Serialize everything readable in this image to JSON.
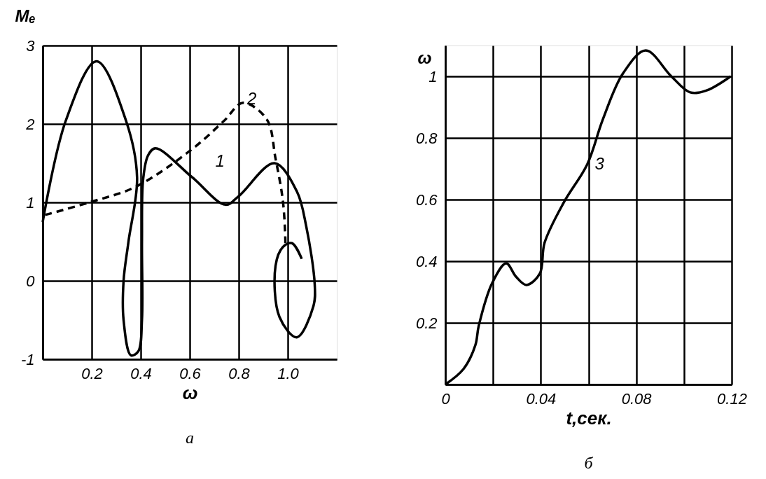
{
  "chart_data": [
    {
      "type": "line",
      "xlabel": "ω",
      "ylabel": "Mₑ",
      "xlim": [
        0,
        1.2
      ],
      "ylim": [
        -1,
        3
      ],
      "xticks": [
        {
          "value": 0,
          "label": null
        },
        0.2,
        0.4,
        0.6,
        0.8,
        {
          "value": 1.0,
          "label": "1.0"
        }
      ],
      "yticks": [
        -1,
        0,
        1,
        2,
        3
      ],
      "grid": true,
      "legend": false,
      "marker": "none",
      "series": [
        {
          "color": "#000000",
          "line_style": "solid",
          "x": [
            0,
            0.094,
            0.22,
            0.34,
            0.385,
            0.35,
            0.33,
            0.33,
            0.36,
            0.39,
            0.405,
            0.405,
            0.41,
            0.43,
            0.46,
            0.61,
            0.746,
            0.8,
            0.946,
            1.037,
            1.075,
            1.11,
            1.105,
            1.037,
            0.966,
            0.95,
            0.98,
            1.017,
            1.057
          ],
          "values": [
            0.75,
            2.04,
            2.8,
            2.04,
            1.32,
            0.5,
            0,
            -0.5,
            -0.95,
            -0.9,
            -0.5,
            0.5,
            1.3,
            1.6,
            1.69,
            1.32,
            0.97,
            1.08,
            1.5,
            1.14,
            0.7,
            -0.05,
            -0.32,
            -0.72,
            -0.46,
            0.19,
            0.43,
            0.48,
            0.28
          ]
        },
        {
          "color": "#000000",
          "line_style": "dashed",
          "x": [
            0.01,
            0.19,
            0.38,
            0.61,
            0.74,
            0.817,
            0.914,
            0.95,
            0.98,
            0.99,
            0.99
          ],
          "values": [
            0.84,
            1.0,
            1.2,
            1.68,
            2.04,
            2.27,
            2.06,
            1.56,
            1.02,
            0.54,
            0.45
          ]
        }
      ],
      "annotations": [
        {
          "text": "1",
          "x": 0.63,
          "y": 1.3
        },
        {
          "text": "2",
          "x": 0.76,
          "y": 2.1
        },
        "а"
      ]
    },
    {
      "type": "line",
      "xlabel": "t,сек.",
      "ylabel": "ω",
      "xlim": [
        0,
        0.12
      ],
      "ylim": [
        0,
        1.1
      ],
      "xticks": [
        0,
        {
          "value": 0.02,
          "label": null
        },
        0.04,
        {
          "value": 0.06,
          "label": null
        },
        0.08,
        {
          "value": 0.1,
          "label": null
        },
        0.12
      ],
      "yticks": [
        {
          "value": 0,
          "label": null
        },
        0.2,
        0.4,
        0.6,
        0.8,
        1
      ],
      "grid": true,
      "legend": false,
      "marker": "none",
      "series": [
        {
          "color": "#000000",
          "line_style": "solid",
          "x": [
            0,
            0.0076,
            0.0126,
            0.014,
            0.0197,
            0.0255,
            0.0296,
            0.034,
            0.0396,
            0.0416,
            0.0496,
            0.0595,
            0.066,
            0.0745,
            0.084,
            0.0947,
            0.1026,
            0.1097,
            0.1196
          ],
          "values": [
            0.0,
            0.05,
            0.128,
            0.19,
            0.33,
            0.393,
            0.35,
            0.323,
            0.36,
            0.46,
            0.59,
            0.715,
            0.86,
            1.01,
            1.084,
            1.0,
            0.948,
            0.955,
            1.0
          ]
        }
      ],
      "annotations": [
        {
          "text": "3",
          "x": 0.055,
          "y": 0.66
        },
        "б"
      ]
    }
  ]
}
